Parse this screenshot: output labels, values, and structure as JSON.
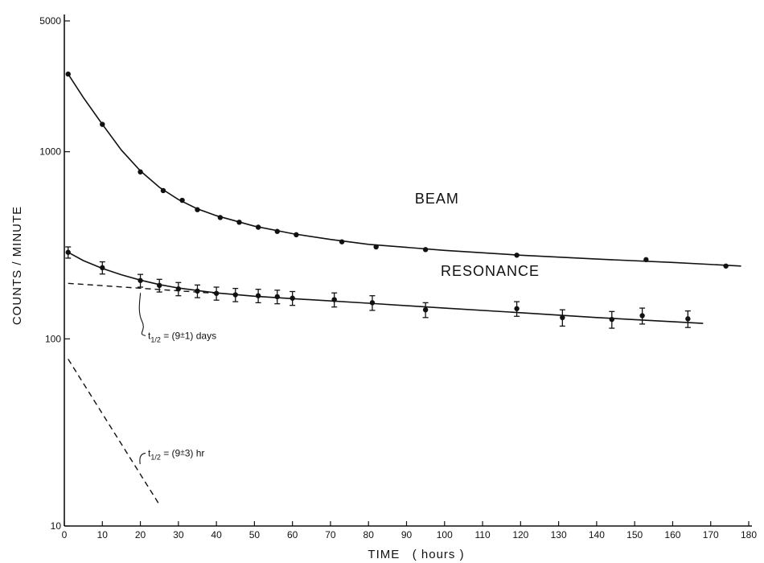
{
  "chart_data": {
    "type": "scatter",
    "title": "",
    "xlabel": "TIME   ( hours )",
    "ylabel": "COUNTS / MINUTE",
    "xscale": "linear",
    "yscale": "log",
    "xlim": [
      0,
      180
    ],
    "ylim": [
      10,
      5000
    ],
    "xticks": [
      "0",
      "10",
      "20",
      "30",
      "40",
      "50",
      "60",
      "70",
      "80",
      "90",
      "100",
      "110",
      "120",
      "130",
      "140",
      "150",
      "160",
      "170",
      "180"
    ],
    "yticks": [
      {
        "value": 10,
        "label": "10"
      },
      {
        "value": 100,
        "label": "100"
      },
      {
        "value": 1000,
        "label": "1000"
      },
      {
        "value": 5000,
        "label": "5000"
      }
    ],
    "grid": false,
    "legend": "none",
    "series": [
      {
        "name": "BEAM",
        "error_bars": false,
        "points": [
          {
            "x": 1,
            "y": 2600
          },
          {
            "x": 10,
            "y": 1400
          },
          {
            "x": 20,
            "y": 780
          },
          {
            "x": 26,
            "y": 620
          },
          {
            "x": 31,
            "y": 550
          },
          {
            "x": 35,
            "y": 490
          },
          {
            "x": 41,
            "y": 445
          },
          {
            "x": 46,
            "y": 420
          },
          {
            "x": 51,
            "y": 395
          },
          {
            "x": 56,
            "y": 375
          },
          {
            "x": 61,
            "y": 360
          },
          {
            "x": 73,
            "y": 330
          },
          {
            "x": 82,
            "y": 310
          },
          {
            "x": 95,
            "y": 300
          },
          {
            "x": 119,
            "y": 280
          },
          {
            "x": 153,
            "y": 265
          },
          {
            "x": 174,
            "y": 245
          }
        ],
        "fit_curve": [
          {
            "x": 1,
            "y": 2600
          },
          {
            "x": 5,
            "y": 1950
          },
          {
            "x": 10,
            "y": 1400
          },
          {
            "x": 15,
            "y": 1020
          },
          {
            "x": 20,
            "y": 790
          },
          {
            "x": 25,
            "y": 645
          },
          {
            "x": 30,
            "y": 555
          },
          {
            "x": 35,
            "y": 495
          },
          {
            "x": 40,
            "y": 455
          },
          {
            "x": 50,
            "y": 400
          },
          {
            "x": 60,
            "y": 365
          },
          {
            "x": 70,
            "y": 340
          },
          {
            "x": 80,
            "y": 320
          },
          {
            "x": 100,
            "y": 297
          },
          {
            "x": 120,
            "y": 280
          },
          {
            "x": 140,
            "y": 267
          },
          {
            "x": 160,
            "y": 256
          },
          {
            "x": 178,
            "y": 245
          }
        ]
      },
      {
        "name": "RESONANCE",
        "error_bars": true,
        "points": [
          {
            "x": 1,
            "y": 290,
            "err": 20
          },
          {
            "x": 10,
            "y": 240,
            "err": 18
          },
          {
            "x": 20,
            "y": 205,
            "err": 16
          },
          {
            "x": 25,
            "y": 193,
            "err": 15
          },
          {
            "x": 30,
            "y": 185,
            "err": 15
          },
          {
            "x": 35,
            "y": 180,
            "err": 14
          },
          {
            "x": 40,
            "y": 175,
            "err": 14
          },
          {
            "x": 45,
            "y": 172,
            "err": 14
          },
          {
            "x": 51,
            "y": 170,
            "err": 14
          },
          {
            "x": 56,
            "y": 168,
            "err": 14
          },
          {
            "x": 60,
            "y": 165,
            "err": 14
          },
          {
            "x": 71,
            "y": 162,
            "err": 14
          },
          {
            "x": 81,
            "y": 156,
            "err": 14
          },
          {
            "x": 95,
            "y": 143,
            "err": 13
          },
          {
            "x": 119,
            "y": 145,
            "err": 13
          },
          {
            "x": 131,
            "y": 130,
            "err": 13
          },
          {
            "x": 144,
            "y": 127,
            "err": 13
          },
          {
            "x": 152,
            "y": 133,
            "err": 13
          },
          {
            "x": 164,
            "y": 128,
            "err": 13
          }
        ],
        "fit_curve": [
          {
            "x": 1,
            "y": 290
          },
          {
            "x": 5,
            "y": 262
          },
          {
            "x": 10,
            "y": 238
          },
          {
            "x": 15,
            "y": 220
          },
          {
            "x": 20,
            "y": 206
          },
          {
            "x": 25,
            "y": 195
          },
          {
            "x": 30,
            "y": 187
          },
          {
            "x": 40,
            "y": 176
          },
          {
            "x": 50,
            "y": 169
          },
          {
            "x": 60,
            "y": 164
          },
          {
            "x": 80,
            "y": 155
          },
          {
            "x": 100,
            "y": 146
          },
          {
            "x": 120,
            "y": 138
          },
          {
            "x": 140,
            "y": 130
          },
          {
            "x": 168,
            "y": 121
          }
        ]
      }
    ],
    "reference_lines": [
      {
        "style": "dashed",
        "from": {
          "x": 1,
          "y": 198
        },
        "to": {
          "x": 40,
          "y": 175
        }
      },
      {
        "style": "dashed",
        "from": {
          "x": 1,
          "y": 78
        },
        "to": {
          "x": 25,
          "y": 13
        }
      }
    ],
    "annotations": [
      {
        "id": "beam",
        "text": "BEAM",
        "x": 98,
        "y": 560
      },
      {
        "id": "resonance",
        "text": "RESONANCE",
        "x": 112,
        "y": 230
      },
      {
        "id": "long_halflife",
        "text_parts": [
          "t",
          "1/2",
          " = (9",
          "±",
          "1) days"
        ],
        "x": 22,
        "y": 104
      },
      {
        "id": "short_halflife",
        "text_parts": [
          "t",
          "1/2",
          " = (9",
          "±",
          "3) hr"
        ],
        "x": 22,
        "y": 24.5
      }
    ]
  }
}
